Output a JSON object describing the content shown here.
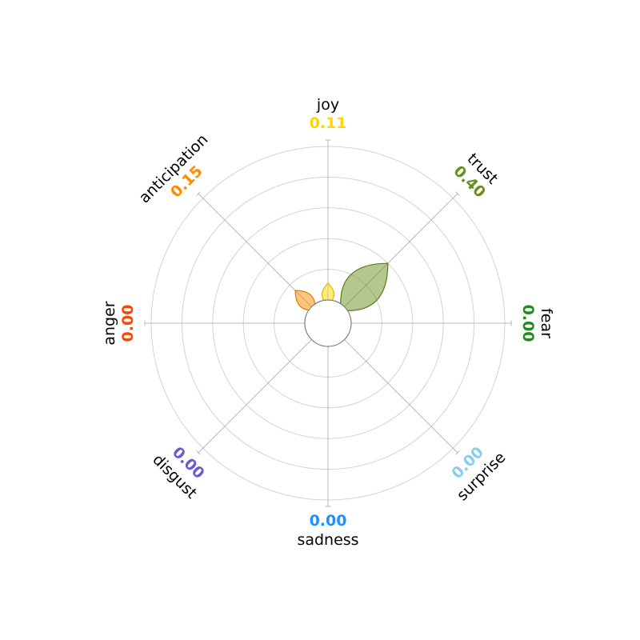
{
  "chart_data": {
    "type": "radar",
    "variant": "emotion-petal",
    "value_range": [
      0,
      1
    ],
    "rings": [
      0.2,
      0.4,
      0.6,
      0.8,
      1.0
    ],
    "grid": true,
    "emotions": [
      {
        "name": "joy",
        "value": 0.11,
        "value_text": "0.11",
        "color": "#FFD700",
        "edge": "#E6B800"
      },
      {
        "name": "trust",
        "value": 0.4,
        "value_text": "0.40",
        "color": "#6B8E23",
        "edge": "#5A7A18"
      },
      {
        "name": "fear",
        "value": 0.0,
        "value_text": "0.00",
        "color": "#228B22",
        "edge": "#1E7A1E"
      },
      {
        "name": "surprise",
        "value": 0.0,
        "value_text": "0.00",
        "color": "#87CEEB",
        "edge": "#6FB5D1"
      },
      {
        "name": "sadness",
        "value": 0.0,
        "value_text": "0.00",
        "color": "#1E90FF",
        "edge": "#1878D9"
      },
      {
        "name": "disgust",
        "value": 0.0,
        "value_text": "0.00",
        "color": "#6A5ACD",
        "edge": "#5A4ABD"
      },
      {
        "name": "anger",
        "value": 0.0,
        "value_text": "0.00",
        "color": "#FF4500",
        "edge": "#DD3A00"
      },
      {
        "name": "anticipation",
        "value": 0.15,
        "value_text": "0.15",
        "color": "#FF8C00",
        "edge": "#E07A00"
      }
    ]
  }
}
